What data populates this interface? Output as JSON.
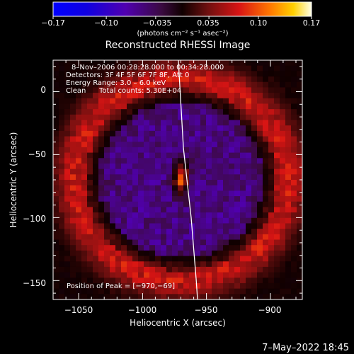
{
  "colorbar": {
    "tick_labels": [
      "−0.17",
      "−0.10",
      "−0.035",
      "0.035",
      "0.10",
      "0.17"
    ],
    "tick_values": [
      -0.17,
      -0.1,
      -0.035,
      0.035,
      0.1,
      0.17
    ],
    "range": [
      -0.17,
      0.17
    ],
    "unit": "(photons cm⁻² s⁻¹ asec⁻²)"
  },
  "chart_data": {
    "type": "heatmap",
    "title": "Reconstructed RHESSI Image",
    "xlabel": "Heliocentric X (arcsec)",
    "ylabel": "Heliocentric Y (arcsec)",
    "xlim": [
      -1070,
      -875
    ],
    "ylim": [
      -165,
      25
    ],
    "x_ticks": [
      -1050,
      -1000,
      -950,
      -900
    ],
    "x_tick_labels": [
      "−1050",
      "−1000",
      "−950",
      "−900"
    ],
    "y_ticks": [
      0,
      -50,
      -100,
      -150
    ],
    "y_tick_labels": [
      "0",
      "−50",
      "−100",
      "−150"
    ],
    "peak": {
      "x": -970,
      "y": -69,
      "value": 0.17
    },
    "ring": {
      "center_x": -970,
      "center_y": -70,
      "radius": 80,
      "value": 0.08
    },
    "limb_line": [
      [
        -972,
        25
      ],
      [
        -968,
        -45
      ],
      [
        -962,
        -100
      ],
      [
        -958,
        -150
      ],
      [
        -957,
        -165
      ]
    ],
    "annotations": [
      "8–Nov–2006 00:28:28.000 to 00:34:28.000",
      "Detectors: 3F 4F 5F 6F 7F 8F, Att 0",
      "Energy Range: 3.0 – 6.0 keV",
      "Clean",
      "Total counts: 5.30E+04"
    ],
    "peak_label": "Position of Peak = [−970,−69]"
  },
  "footer": {
    "date": "7–May–2022 18:45"
  },
  "colors": {
    "background": "#000000",
    "axis": "#ffffff",
    "limb": "#ffffff"
  }
}
